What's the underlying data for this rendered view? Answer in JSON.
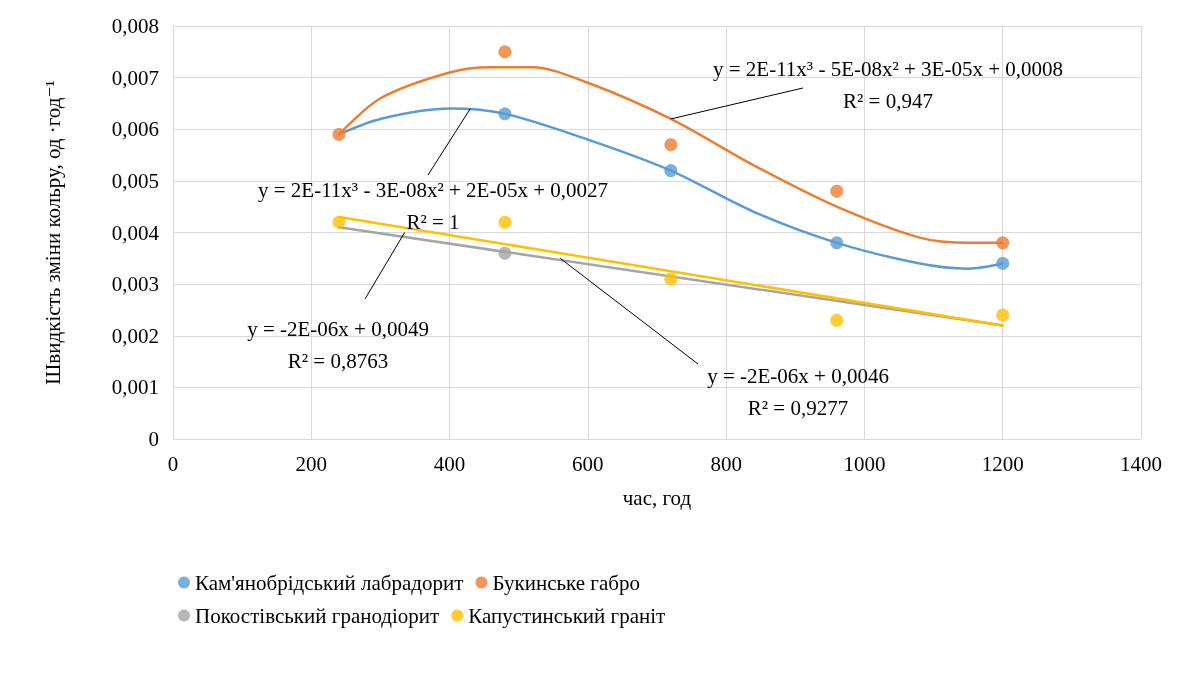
{
  "chart_data": {
    "type": "scatter",
    "xlabel": "час, год",
    "ylabel": "Швидкість зміни кольру, од ·год⁻¹",
    "x": [
      240,
      480,
      720,
      960,
      1200
    ],
    "series": [
      {
        "name": "Кам'янобрідський лабрадорит",
        "color": "#5b9bd5",
        "values": [
          null,
          0.0063,
          0.0052,
          0.0038,
          0.0034
        ]
      },
      {
        "name": "Букинське габро",
        "color": "#ed7d31",
        "values": [
          0.0059,
          0.0075,
          0.0057,
          0.0048,
          0.0038
        ]
      },
      {
        "name": "Покостівський гранодіорит",
        "color": "#a5a5a5",
        "values": [
          null,
          0.0036,
          null,
          null,
          null
        ]
      },
      {
        "name": "Капустинський граніт",
        "color": "#ffc000",
        "values": [
          0.0042,
          0.0042,
          0.0031,
          0.0023,
          0.0024
        ]
      },
      {
        "type": "line",
        "color": "#5b9bd5",
        "x": [
          240,
          300,
          400,
          480,
          600,
          720,
          840,
          960,
          1080,
          1150,
          1200
        ],
        "values": [
          0.0059,
          0.0062,
          0.0064,
          0.0063,
          0.0058,
          0.0052,
          0.0044,
          0.0038,
          0.0034,
          0.0033,
          0.0034
        ],
        "marker": "none"
      },
      {
        "type": "line",
        "color": "#ed7d31",
        "x": [
          240,
          300,
          400,
          460,
          520,
          600,
          720,
          840,
          960,
          1080,
          1150,
          1200
        ],
        "values": [
          0.0059,
          0.0066,
          0.0071,
          0.0072,
          0.0072,
          0.0069,
          0.0062,
          0.0053,
          0.0045,
          0.0039,
          0.0038,
          0.0038
        ],
        "marker": "none"
      },
      {
        "type": "line",
        "color": "#a5a5a5",
        "x": [
          240,
          1200
        ],
        "values": [
          0.0041,
          0.0022
        ],
        "marker": "none"
      },
      {
        "type": "line",
        "color": "#ffc000",
        "x": [
          240,
          1200
        ],
        "values": [
          0.0043,
          0.0022
        ],
        "marker": "none"
      }
    ],
    "xlim": [
      0,
      1400
    ],
    "xticks": [
      0,
      200,
      400,
      600,
      800,
      1000,
      1200,
      1400
    ],
    "ylim": [
      0,
      0.008
    ],
    "yticks": [
      0,
      {
        "value": 0.001,
        "label": "0,001"
      },
      {
        "value": 0.002,
        "label": "0,002"
      },
      {
        "value": 0.003,
        "label": "0,003"
      },
      {
        "value": 0.004,
        "label": "0,004"
      },
      {
        "value": 0.005,
        "label": "0,005"
      },
      {
        "value": 0.006,
        "label": "0,006"
      },
      {
        "value": 0.007,
        "label": "0,007"
      },
      {
        "value": 0.008,
        "label": "0,008"
      }
    ],
    "annotations": [
      {
        "text": "y = 2E-11x³ - 5E-08x² + 3E-05x + 0,0008\nR² = 0,947",
        "x": 720,
        "y": 0.0062
      },
      {
        "text": "y = 2E-11x³ - 3E-08x² + 2E-05x + 0,0027\nR² = 1",
        "x": 430,
        "y": 0.0064
      },
      {
        "text": "y = -2E-06x + 0,0049\nR² = 0,8763",
        "x": 335,
        "y": 0.004
      },
      {
        "text": "y = -2E-06x + 0,0046\nR² = 0,9277",
        "x": 560,
        "y": 0.0035
      }
    ],
    "grid": true,
    "legend": "bottom",
    "marker": "circle",
    "line_style": "solid"
  }
}
